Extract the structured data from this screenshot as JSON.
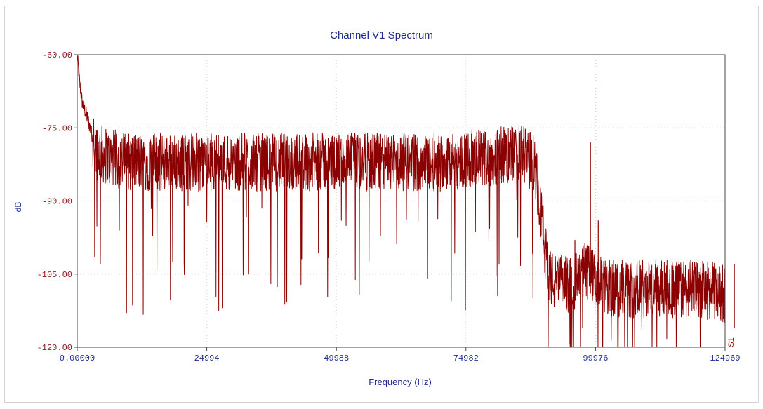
{
  "chart_data": {
    "type": "line",
    "title": "Channel V1 Spectrum",
    "xlabel": "Frequency (Hz)",
    "ylabel": "dB",
    "series_tag": "S1",
    "xlim": [
      0,
      124969
    ],
    "ylim": [
      -120,
      -60
    ],
    "x_ticks": [
      "0.00000",
      "24994",
      "49988",
      "74982",
      "99976",
      "124969"
    ],
    "y_ticks": [
      "-60.00",
      "-75.00",
      "-90.00",
      "-105.00",
      "-120.00"
    ],
    "grid": true,
    "series": [
      {
        "color": "#8b0000",
        "x": [
          0,
          500,
          1000,
          2000,
          3000,
          4000,
          6000,
          10000,
          20000,
          30000,
          40000,
          50000,
          60000,
          70000,
          80000,
          85000,
          88000,
          89000,
          90000,
          91000,
          92000,
          95000,
          97000,
          98000,
          99000,
          100000,
          102000,
          105000,
          110000,
          115000,
          120000,
          124969
        ],
        "y": [
          -60,
          -66,
          -70,
          -73,
          -77,
          -80,
          -81,
          -82,
          -82,
          -82,
          -82,
          -82,
          -82,
          -82,
          -81,
          -80,
          -82,
          -88,
          -98,
          -105,
          -107,
          -107,
          -106,
          -104,
          -105,
          -107,
          -108,
          -108,
          -108,
          -108,
          -108,
          -109
        ]
      }
    ],
    "annotations": [
      {
        "x": 99000,
        "y": -78,
        "note": "spike"
      },
      {
        "x": 96000,
        "y": -98,
        "note": "spike"
      },
      {
        "x": 100500,
        "y": -94,
        "note": "spike"
      }
    ]
  }
}
